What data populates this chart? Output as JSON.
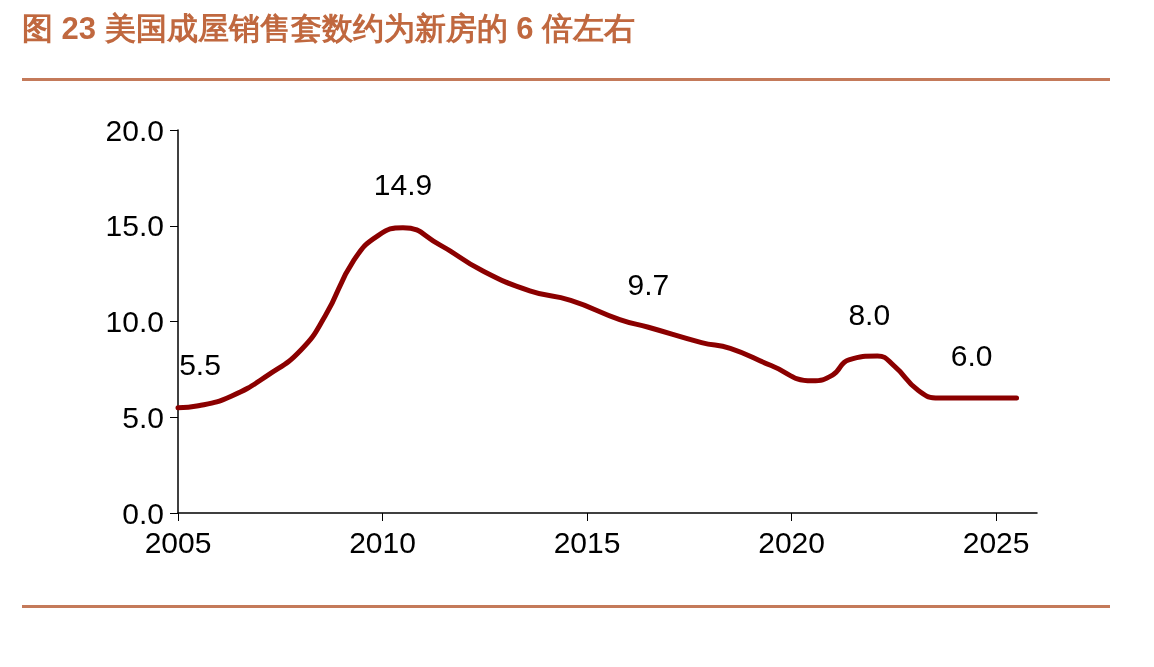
{
  "chart_data": {
    "type": "line",
    "title": "图 23 美国成屋销售套数约为新房的 6 倍左右",
    "x": [
      2005,
      2005.5,
      2006.3,
      2007.2,
      2008,
      2008.6,
      2009.3,
      2009.9,
      2010.5,
      2011.4,
      2012.4,
      2013.6,
      2014.6,
      2015.8,
      2016.5,
      2017.8,
      2018.5,
      2019.5,
      2020.5,
      2021,
      2021.4,
      2022.1,
      2022.5,
      2023.1,
      2023.6,
      2024.6,
      2025.5
    ],
    "series": [
      {
        "color": "#8b0000",
        "values": [
          5.5,
          5.6,
          6.1,
          7.2,
          8.5,
          10.3,
          13.2,
          14.5,
          14.9,
          14.0,
          12.7,
          11.6,
          11.1,
          10.1,
          9.7,
          8.9,
          8.6,
          7.7,
          6.9,
          7.2,
          8.0,
          8.2,
          7.7,
          6.4,
          6.0,
          6.0,
          6.0
        ]
      }
    ],
    "xlim": [
      2005,
      2026
    ],
    "xticks": [
      2005,
      2010,
      2015,
      2020,
      2025
    ],
    "ylim": [
      0,
      20
    ],
    "yticks": [
      {
        "value": 0,
        "label": "0.0"
      },
      {
        "value": 5,
        "label": "5.0"
      },
      {
        "value": 10,
        "label": "10.0"
      },
      {
        "value": 15,
        "label": "15.0"
      },
      {
        "value": 20,
        "label": "20.0"
      }
    ],
    "annotations": [
      {
        "text": "5.5",
        "x": 2005,
        "y": 5.5
      },
      {
        "text": "14.9",
        "x": 2010.5,
        "y": 14.9
      },
      {
        "text": "9.7",
        "x": 2016.5,
        "y": 9.7
      },
      {
        "text": "8.0",
        "x": 2021.9,
        "y": 8.1
      },
      {
        "text": "6.0",
        "x": 2024.4,
        "y": 6.0
      }
    ],
    "grid": false,
    "marker": "none",
    "line_style": "solid"
  }
}
